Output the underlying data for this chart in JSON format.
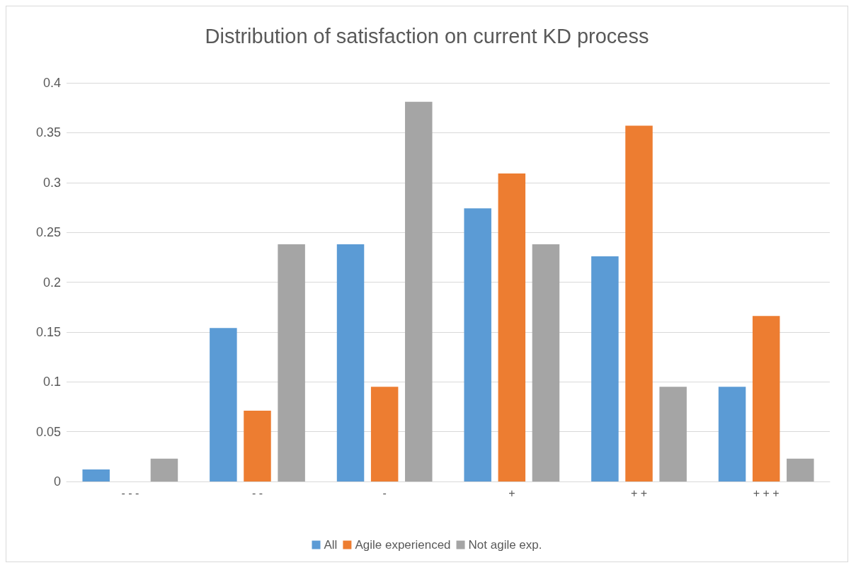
{
  "chart_data": {
    "type": "bar",
    "title": "Distribution of satisfaction on current KD process",
    "categories": [
      "- - -",
      "- -",
      "-",
      "+",
      "+ +",
      "+ + +"
    ],
    "series": [
      {
        "name": "All",
        "color": "#5b9bd5",
        "values": [
          0.012,
          0.154,
          0.238,
          0.274,
          0.226,
          0.095
        ]
      },
      {
        "name": "Agile experienced",
        "color": "#ed7d31",
        "values": [
          0,
          0.071,
          0.095,
          0.309,
          0.357,
          0.166
        ]
      },
      {
        "name": "Not agile exp.",
        "color": "#a5a5a5",
        "values": [
          0.023,
          0.238,
          0.381,
          0.238,
          0.095,
          0.023
        ]
      }
    ],
    "ylim": [
      0,
      0.4
    ],
    "yticks": [
      0,
      0.05,
      0.1,
      0.15,
      0.2,
      0.25,
      0.3,
      0.35,
      0.4
    ],
    "grid": "y",
    "legend": "bottom"
  }
}
